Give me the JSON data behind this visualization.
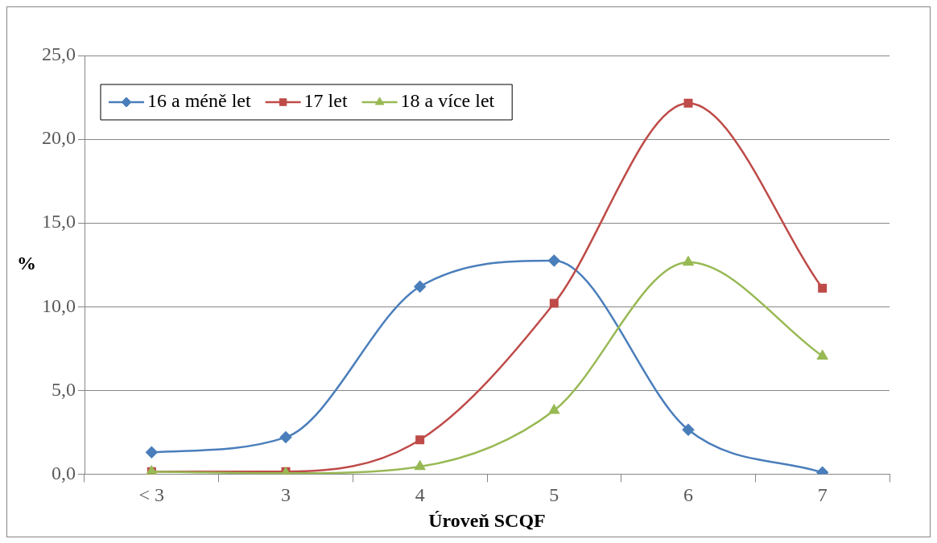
{
  "chart_data": {
    "type": "line",
    "xlabel": "Úroveň SCQF",
    "ylabel": "%",
    "categories": [
      "< 3",
      "3",
      "4",
      "5",
      "6",
      "7"
    ],
    "series": [
      {
        "name": "16 a méně let",
        "color": "#4a7ebb",
        "marker": "diamond",
        "values": [
          1.3,
          2.2,
          11.2,
          12.75,
          2.65,
          0.1
        ]
      },
      {
        "name": "17 let",
        "color": "#be4b48",
        "marker": "square",
        "values": [
          0.15,
          0.15,
          2.05,
          10.2,
          22.15,
          11.1
        ]
      },
      {
        "name": "18 a více let",
        "color": "#98b954",
        "marker": "triangle",
        "values": [
          0.15,
          0.05,
          0.45,
          3.8,
          12.65,
          7.05
        ]
      }
    ],
    "ylim": [
      0,
      25
    ],
    "yticks": [
      {
        "value": 0,
        "label": "0,0"
      },
      {
        "value": 5,
        "label": "5,0"
      },
      {
        "value": 10,
        "label": "10,0"
      },
      {
        "value": 15,
        "label": "15,0"
      },
      {
        "value": 20,
        "label": "20,0"
      },
      {
        "value": 25,
        "label": "25,0"
      }
    ],
    "grid": "y",
    "legend": "top left",
    "line_style": "solid"
  }
}
